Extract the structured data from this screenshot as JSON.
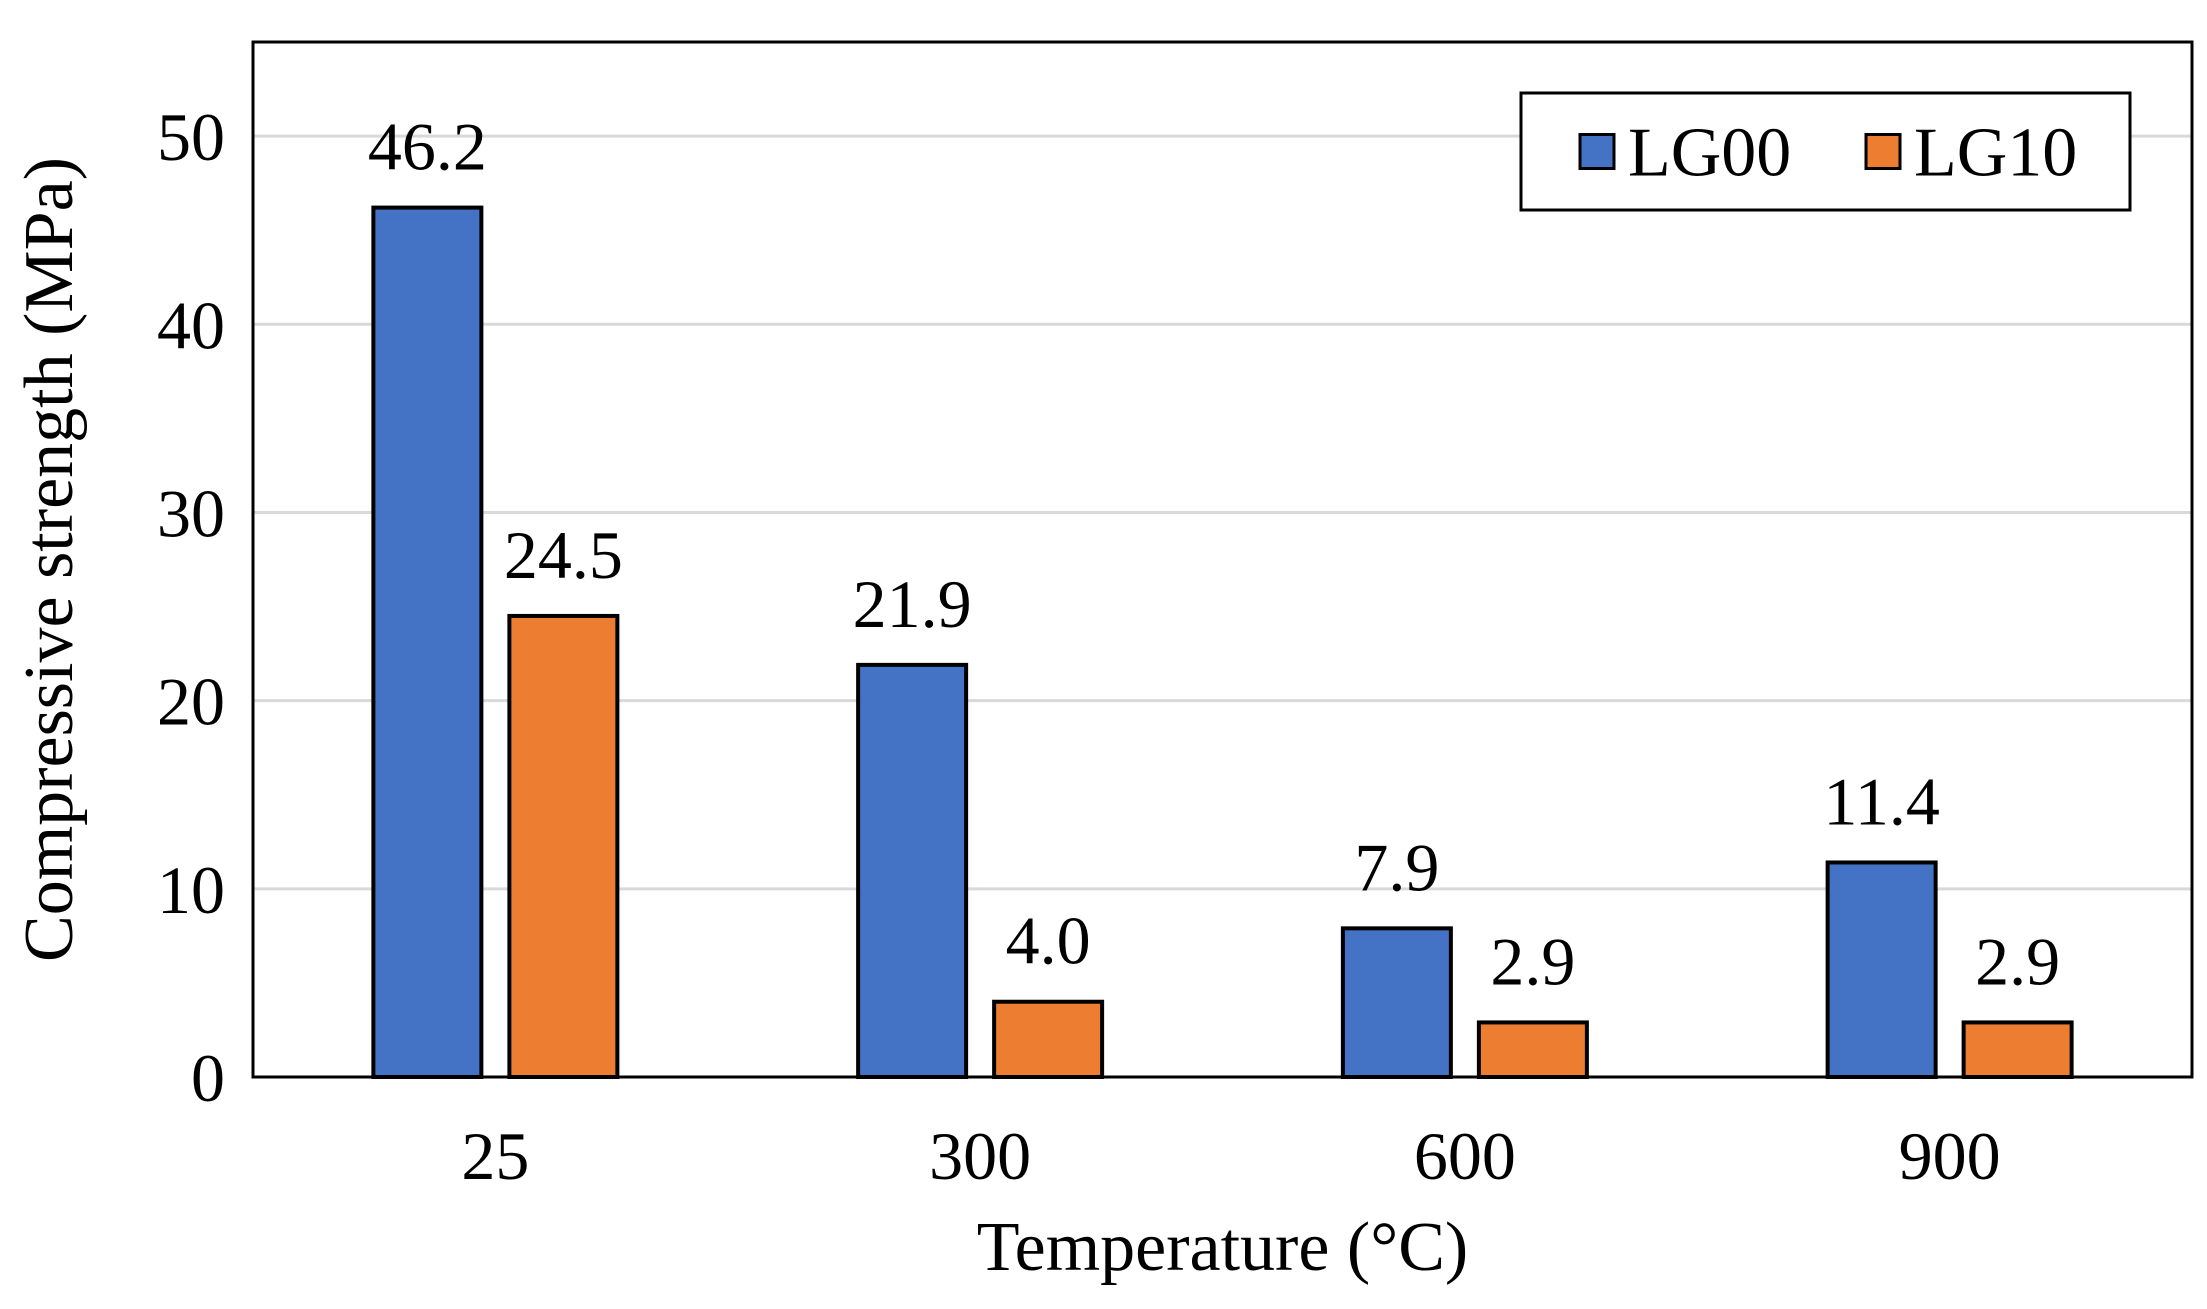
{
  "chart_data": {
    "type": "bar",
    "title": "",
    "xlabel": "Temperature (°C)",
    "ylabel": "Compressive strength (MPa)",
    "categories": [
      "25",
      "300",
      "600",
      "900"
    ],
    "series": [
      {
        "name": "LG00",
        "color": "#4472C4",
        "values": [
          46.2,
          21.9,
          7.9,
          11.4
        ],
        "labels": [
          "46.2",
          "21.9",
          "7.9",
          "11.4"
        ]
      },
      {
        "name": "LG10",
        "color": "#ED7D31",
        "values": [
          24.5,
          4.0,
          2.9,
          2.9
        ],
        "labels": [
          "24.5",
          "4.0",
          "2.9",
          "2.9"
        ]
      }
    ],
    "ylim": [
      0,
      55
    ],
    "yticks": [
      "0",
      "10",
      "20",
      "30",
      "40",
      "50"
    ],
    "grid": true,
    "legend_position": "top-right"
  }
}
